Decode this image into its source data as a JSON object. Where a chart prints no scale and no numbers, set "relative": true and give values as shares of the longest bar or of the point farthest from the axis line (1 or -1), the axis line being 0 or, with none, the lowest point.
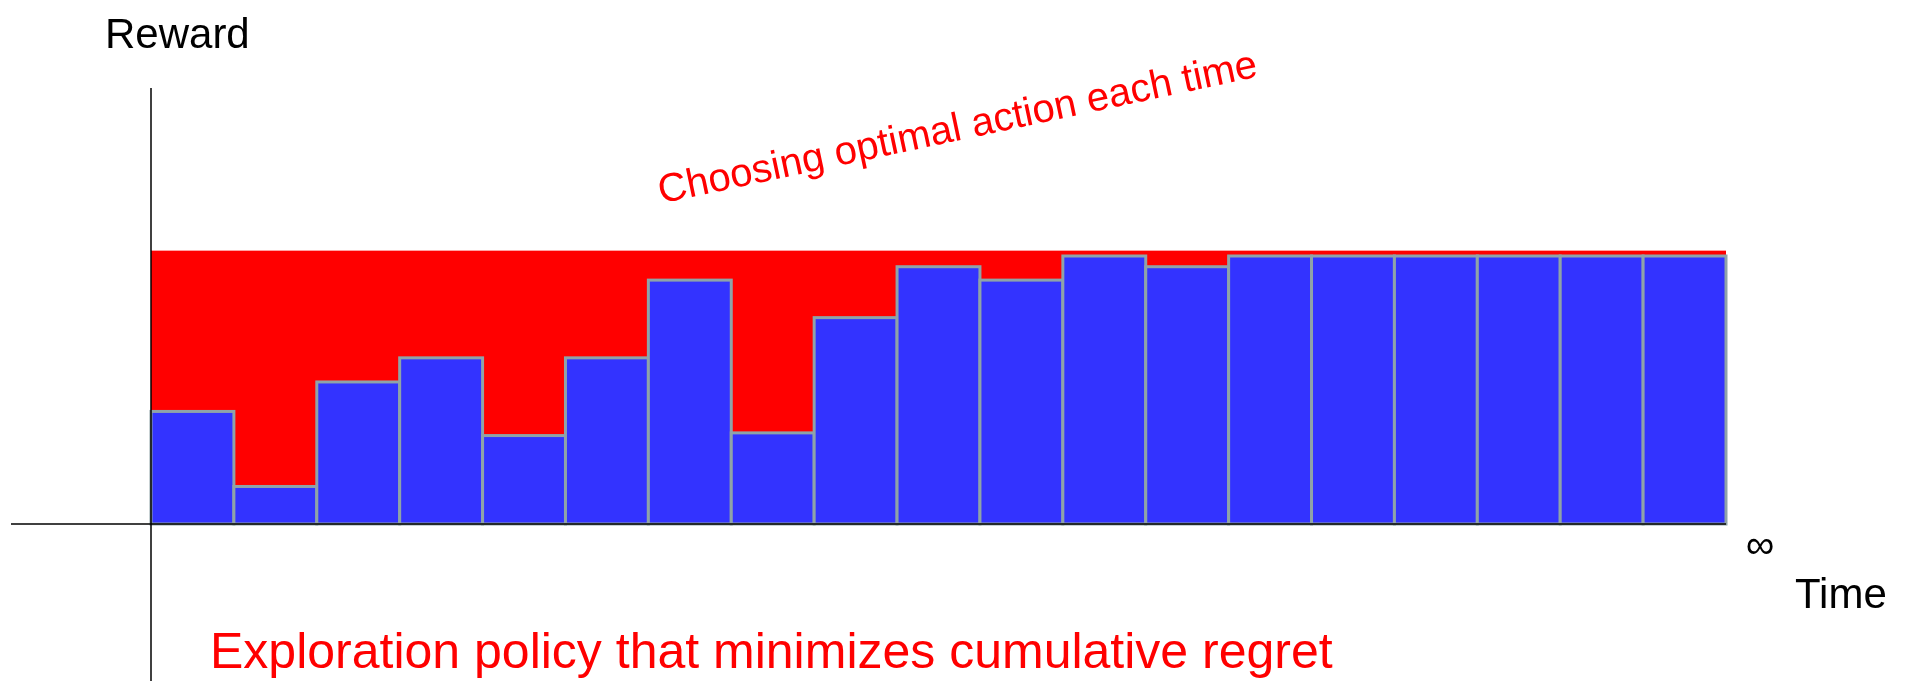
{
  "chart_data": {
    "type": "bar",
    "relative": true,
    "xlabel": "Time",
    "ylabel": "Reward",
    "color": "#3333ff",
    "categories": [
      null,
      null,
      null,
      null,
      null,
      null,
      null,
      null,
      null,
      null,
      null,
      null,
      null,
      null,
      null,
      null,
      null,
      null,
      null
    ],
    "values": [
      0.42,
      0.14,
      0.53,
      0.62,
      0.33,
      0.62,
      0.91,
      0.34,
      0.77,
      0.96,
      0.91,
      1,
      0.96,
      1,
      1,
      1,
      1,
      1,
      1
    ],
    "bands": [
      {
        "axis": "y",
        "from": 0,
        "to": 1.02,
        "color": "#ff0000"
      }
    ],
    "annotations": [
      "Choosing optimal action each time",
      "∞",
      "Exploration policy that minimizes cumulative regret"
    ]
  }
}
